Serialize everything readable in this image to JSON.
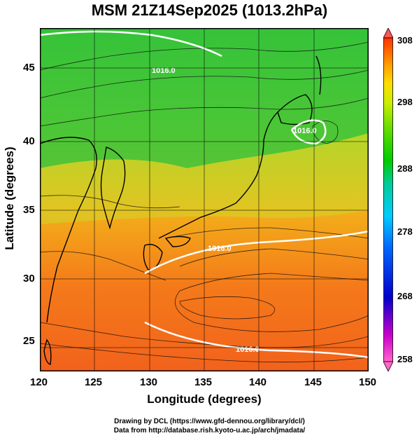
{
  "title": "MSM 21Z14Sep2025 (1013.2hPa)",
  "axes": {
    "xlabel": "Longitude (degrees)",
    "ylabel": "Latitude  (degrees)",
    "xticks": [
      "120",
      "125",
      "130",
      "135",
      "140",
      "145",
      "150"
    ],
    "yticks": [
      "45",
      "40",
      "35",
      "30",
      "25"
    ]
  },
  "contours": {
    "labels": [
      "1016.0",
      "1016.0",
      "1016.0",
      "1016.0"
    ]
  },
  "colorbar": {
    "ticks": [
      "308",
      "298",
      "288",
      "278",
      "268",
      "258"
    ],
    "colors": [
      "#ff66cc",
      "#cc00cc",
      "#0000cc",
      "#0066ff",
      "#00ccff",
      "#00cc99",
      "#00cc00",
      "#66dd00",
      "#ccee00",
      "#ffdd00",
      "#ff9900",
      "#ff5500",
      "#ff3300"
    ]
  },
  "credits": {
    "line1": "Drawing by DCL (https://www.gfd-dennou.org/library/dcl/)",
    "line2": "Data from http://database.rish.kyoto-u.ac.jp/arch/jmadata/"
  }
}
